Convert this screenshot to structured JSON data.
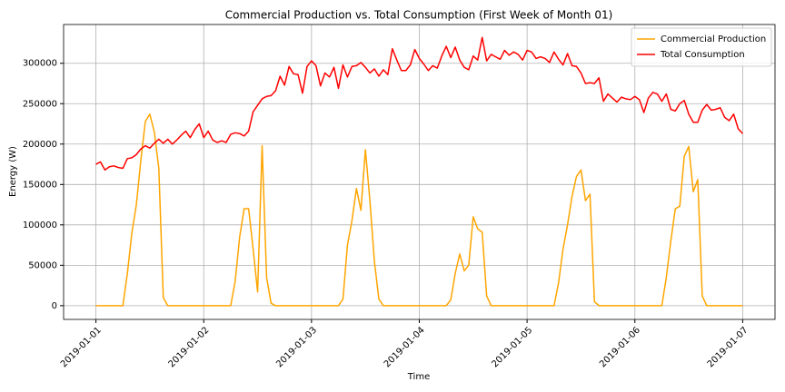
{
  "chart_data": {
    "type": "line",
    "title": "Commercial Production vs. Total Consumption (First Week of Month 01)",
    "x_label": "Time",
    "y_label": "Energy (W)",
    "categories": [
      "2019-01-01",
      null,
      null,
      null,
      null,
      null,
      null,
      null,
      null,
      null,
      null,
      null,
      null,
      null,
      null,
      null,
      null,
      null,
      null,
      null,
      null,
      null,
      null,
      null,
      "2019-01-02",
      null,
      null,
      null,
      null,
      null,
      null,
      null,
      null,
      null,
      null,
      null,
      null,
      null,
      null,
      null,
      null,
      null,
      null,
      null,
      null,
      null,
      null,
      null,
      "2019-01-03",
      null,
      null,
      null,
      null,
      null,
      null,
      null,
      null,
      null,
      null,
      null,
      null,
      null,
      null,
      null,
      null,
      null,
      null,
      null,
      null,
      null,
      null,
      null,
      "2019-01-04",
      null,
      null,
      null,
      null,
      null,
      null,
      null,
      null,
      null,
      null,
      null,
      null,
      null,
      null,
      null,
      null,
      null,
      null,
      null,
      null,
      null,
      null,
      null,
      "2019-01-05",
      null,
      null,
      null,
      null,
      null,
      null,
      null,
      null,
      null,
      null,
      null,
      null,
      null,
      null,
      null,
      null,
      null,
      null,
      null,
      null,
      null,
      null,
      null,
      "2019-01-06",
      null,
      null,
      null,
      null,
      null,
      null,
      null,
      null,
      null,
      null,
      null,
      null,
      null,
      null,
      null,
      null,
      null,
      null,
      null,
      null,
      null,
      null,
      null,
      "2019-01-07"
    ],
    "series": [
      {
        "name": "Commercial Production",
        "color": "#ffa500",
        "values": [
          0,
          0,
          0,
          0,
          0,
          0,
          0,
          40000,
          90000,
          125000,
          180000,
          228000,
          237000,
          215000,
          170000,
          10000,
          0,
          0,
          0,
          0,
          0,
          0,
          0,
          0,
          0,
          0,
          0,
          0,
          0,
          0,
          0,
          30000,
          85000,
          120000,
          120000,
          70000,
          17000,
          198000,
          35000,
          3000,
          0,
          0,
          0,
          0,
          0,
          0,
          0,
          0,
          0,
          0,
          0,
          0,
          0,
          0,
          0,
          8000,
          75000,
          105000,
          145000,
          118000,
          193000,
          130000,
          55000,
          8000,
          0,
          0,
          0,
          0,
          0,
          0,
          0,
          0,
          0,
          0,
          0,
          0,
          0,
          0,
          0,
          7000,
          40000,
          64000,
          43000,
          50000,
          110000,
          95000,
          91000,
          12000,
          0,
          0,
          0,
          0,
          0,
          0,
          0,
          0,
          0,
          0,
          0,
          0,
          0,
          0,
          0,
          28000,
          70000,
          100000,
          135000,
          160000,
          168000,
          130000,
          138000,
          5000,
          0,
          0,
          0,
          0,
          0,
          0,
          0,
          0,
          0,
          0,
          0,
          0,
          0,
          0,
          0,
          35000,
          80000,
          120000,
          123000,
          185000,
          197000,
          141000,
          156000,
          12000,
          0,
          0,
          0,
          0,
          0,
          0,
          0,
          0,
          0
        ]
      },
      {
        "name": "Total Consumption",
        "color": "#ff0000",
        "values": [
          175000,
          178000,
          168000,
          172000,
          173000,
          171000,
          170000,
          182000,
          183000,
          187000,
          194000,
          198000,
          195000,
          201000,
          206000,
          201000,
          206000,
          200000,
          205000,
          211000,
          216000,
          208000,
          218000,
          225000,
          208000,
          216000,
          205000,
          202000,
          204000,
          202000,
          212000,
          214000,
          213000,
          210000,
          216000,
          240000,
          248000,
          256000,
          259000,
          260000,
          266000,
          284000,
          273000,
          296000,
          287000,
          286000,
          263000,
          296000,
          303000,
          297000,
          272000,
          288000,
          283000,
          295000,
          269000,
          298000,
          283000,
          296000,
          297000,
          301000,
          295000,
          288000,
          293000,
          284000,
          292000,
          286000,
          318000,
          304000,
          291000,
          291000,
          298000,
          317000,
          306000,
          299000,
          291000,
          297000,
          294000,
          309000,
          321000,
          307000,
          320000,
          304000,
          295000,
          292000,
          309000,
          304000,
          332000,
          303000,
          311000,
          308000,
          305000,
          316000,
          310000,
          314000,
          311000,
          304000,
          316000,
          314000,
          306000,
          308000,
          306000,
          301000,
          314000,
          305000,
          298000,
          312000,
          297000,
          296000,
          288000,
          275000,
          276000,
          275000,
          282000,
          253000,
          262000,
          257000,
          252000,
          258000,
          256000,
          255000,
          259000,
          255000,
          239000,
          257000,
          264000,
          262000,
          253000,
          262000,
          243000,
          241000,
          250000,
          254000,
          237000,
          227000,
          227000,
          242000,
          249000,
          242000,
          243000,
          245000,
          233000,
          229000,
          237000,
          219000,
          213000
        ]
      }
    ],
    "ylim": [
      -17000,
      348000
    ],
    "yticks": [
      0,
      50000,
      100000,
      150000,
      200000,
      250000,
      300000
    ],
    "grid": true,
    "legend": "upper right"
  }
}
